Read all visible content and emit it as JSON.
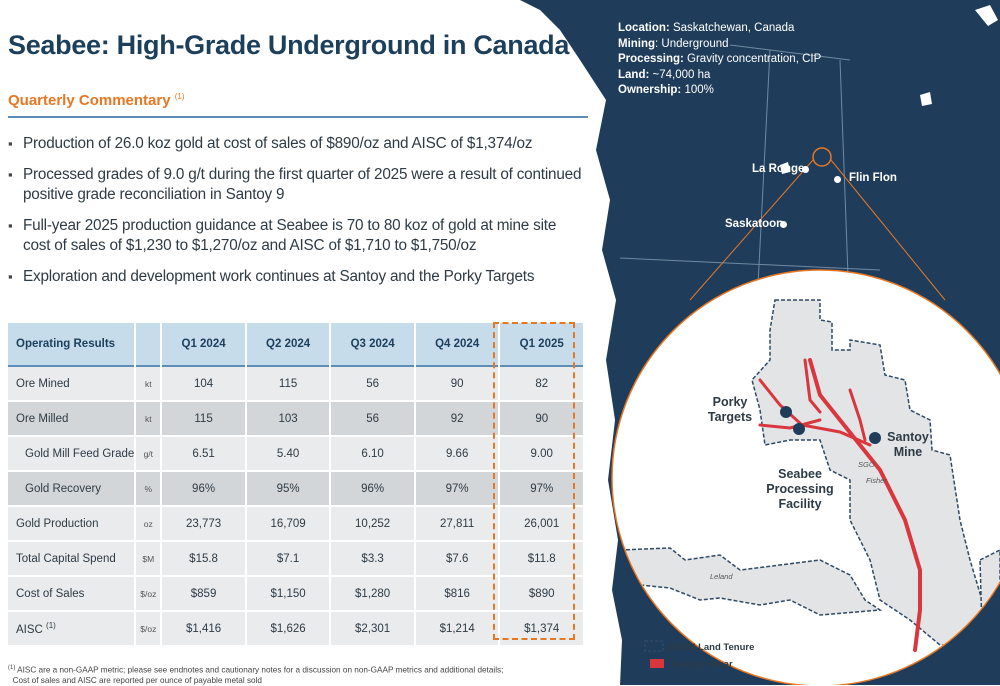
{
  "title": "Seabee: High-Grade Underground in Canada",
  "commentary": {
    "heading": "Quarterly Commentary",
    "heading_sup": "(1)",
    "bullets": [
      "Production of 26.0 koz gold at cost of sales of $890/oz and AISC of $1,374/oz",
      "Processed grades of 9.0 g/t during the first quarter of 2025 were a result of continued positive grade reconciliation in Santoy 9",
      "Full-year 2025 production guidance at Seabee is 70 to 80 koz of gold at mine site cost of sales of $1,230 to $1,270/oz and AISC of $1,710 to $1,750/oz",
      "Exploration and development work continues at Santoy and the Porky Targets"
    ]
  },
  "table": {
    "header": [
      "Operating Results",
      "",
      "Q1 2024",
      "Q2 2024",
      "Q3 2024",
      "Q4 2024",
      "Q1 2025"
    ],
    "rows": [
      {
        "label": "Ore Mined",
        "sup": "",
        "unit": "kt",
        "values": [
          "104",
          "115",
          "56",
          "90",
          "82"
        ]
      },
      {
        "label": "Ore Milled",
        "sup": "",
        "unit": "kt",
        "values": [
          "115",
          "103",
          "56",
          "92",
          "90"
        ]
      },
      {
        "label": "Gold Mill Feed Grade",
        "sup": "",
        "unit": "g/t",
        "values": [
          "6.51",
          "5.40",
          "6.10",
          "9.66",
          "9.00"
        ]
      },
      {
        "label": "Gold Recovery",
        "sup": "",
        "unit": "%",
        "values": [
          "96%",
          "95%",
          "96%",
          "97%",
          "97%"
        ]
      },
      {
        "label": "Gold Production",
        "sup": "",
        "unit": "oz",
        "values": [
          "23,773",
          "16,709",
          "10,252",
          "27,811",
          "26,001"
        ]
      },
      {
        "label": "Total Capital Spend",
        "sup": "",
        "unit": "$M",
        "values": [
          "$15.8",
          "$7.1",
          "$3.3",
          "$7.6",
          "$11.8"
        ]
      },
      {
        "label": "Cost of Sales",
        "sup": "",
        "unit": "$/oz",
        "values": [
          "$859",
          "$1,150",
          "$1,280",
          "$816",
          "$890"
        ]
      },
      {
        "label": "AISC",
        "sup": "(1)",
        "unit": "$/oz",
        "values": [
          "$1,416",
          "$1,626",
          "$2,301",
          "$1,214",
          "$1,374"
        ]
      }
    ]
  },
  "footnote": {
    "sup": "(1)",
    "line1": "AISC are a non-GAAP metric; please see endnotes and cautionary notes for a discussion on non-GAAP metrics and additional details;",
    "line2": "Cost of sales and AISC are reported per ounce of payable metal sold"
  },
  "map": {
    "info": [
      {
        "key": "Location:",
        "value": "Saskatchewan, Canada"
      },
      {
        "key": "Mining",
        "value": ": Underground"
      },
      {
        "key": "Processing:",
        "value": "Gravity concentration, CIP"
      },
      {
        "key": "Land:",
        "value": "~74,000 ha"
      },
      {
        "key": "Ownership:",
        "value": "100%"
      }
    ],
    "cities": [
      "La Ronge",
      "Flin Flon",
      "Saskatoon"
    ],
    "labels": {
      "porky": "Porky Targets",
      "santoy": "Santoy Mine",
      "facility": "Seabee Processing Facility",
      "sgo": "SGO",
      "fisher": "Fisher",
      "leland": "Leland"
    },
    "legend": {
      "tenure": "SSRM Land Tenure",
      "shear": "Santoy Shear"
    },
    "colors": {
      "water": "#ffffff",
      "land": "#1f3d5a",
      "inset": "#e8e9ea",
      "shear": "#d9363e",
      "accent": "#e87722"
    }
  }
}
